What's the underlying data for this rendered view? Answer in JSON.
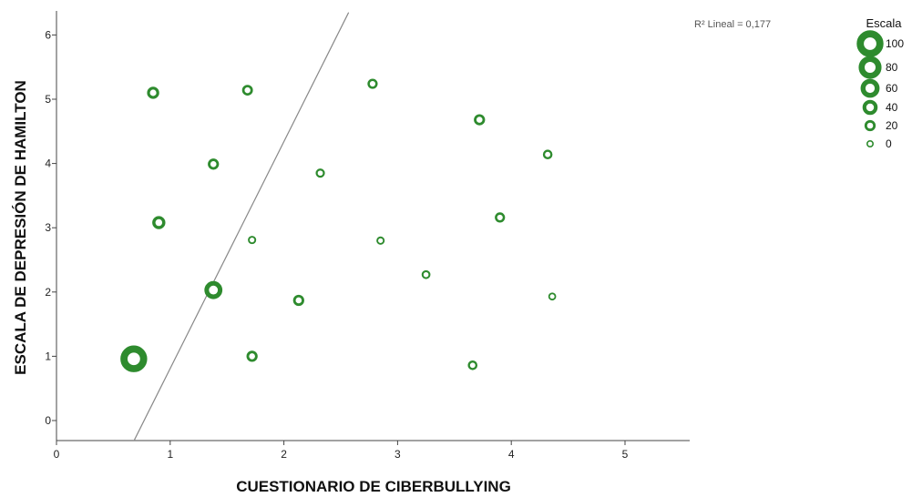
{
  "chart_data": {
    "type": "scatter",
    "xlabel": "CUESTIONARIO DE CIBERBULLYING",
    "ylabel": "ESCALA DE DEPRESIÓN DE HAMILTON",
    "xlim": [
      0,
      5.55
    ],
    "ylim": [
      -0.3,
      6.35
    ],
    "xticks": [
      "0",
      "1",
      "2",
      "3",
      "4",
      "5"
    ],
    "yticks": [
      "0",
      "1",
      "2",
      "3",
      "4",
      "5",
      "6"
    ],
    "grid": false,
    "annotation": "R² Lineal = 0,177",
    "fit_line": {
      "slope": 3.53,
      "intercept": -2.72
    },
    "color": "#2e8b2e",
    "size_legend": {
      "title": "Escala",
      "entries": [
        {
          "label": "100",
          "value": 100
        },
        {
          "label": "80",
          "value": 80
        },
        {
          "label": "60",
          "value": 60
        },
        {
          "label": "40",
          "value": 40
        },
        {
          "label": "20",
          "value": 20
        },
        {
          "label": "0",
          "value": 0
        }
      ]
    },
    "points": [
      {
        "x": 0.68,
        "y": 0.96,
        "size": 100
      },
      {
        "x": 0.85,
        "y": 5.1,
        "size": 25
      },
      {
        "x": 0.9,
        "y": 3.08,
        "size": 30
      },
      {
        "x": 1.38,
        "y": 3.99,
        "size": 20
      },
      {
        "x": 1.38,
        "y": 2.03,
        "size": 55
      },
      {
        "x": 1.68,
        "y": 5.14,
        "size": 18
      },
      {
        "x": 1.72,
        "y": 2.81,
        "size": 5
      },
      {
        "x": 1.72,
        "y": 1.0,
        "size": 20
      },
      {
        "x": 2.13,
        "y": 1.87,
        "size": 20
      },
      {
        "x": 2.32,
        "y": 3.85,
        "size": 10
      },
      {
        "x": 2.78,
        "y": 5.24,
        "size": 15
      },
      {
        "x": 2.85,
        "y": 2.8,
        "size": 5
      },
      {
        "x": 3.25,
        "y": 2.27,
        "size": 8
      },
      {
        "x": 3.66,
        "y": 0.86,
        "size": 12
      },
      {
        "x": 3.72,
        "y": 4.68,
        "size": 20
      },
      {
        "x": 3.9,
        "y": 3.16,
        "size": 15
      },
      {
        "x": 4.32,
        "y": 4.14,
        "size": 12
      },
      {
        "x": 4.36,
        "y": 1.93,
        "size": 3
      }
    ]
  }
}
